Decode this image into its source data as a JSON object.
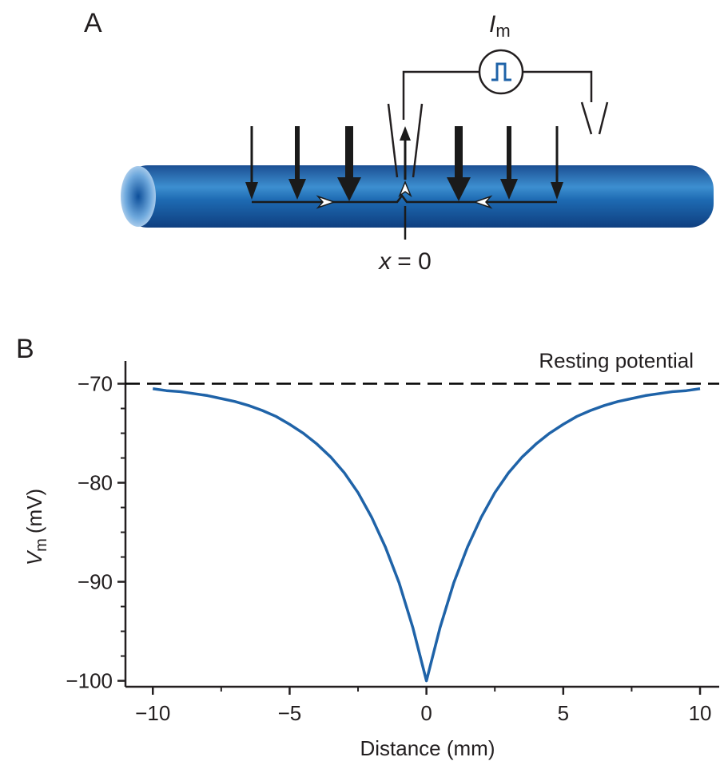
{
  "diagram": {
    "panel_label": "A",
    "current_symbol": "I",
    "current_subscript": "m",
    "position_variable": "x",
    "position_value": "= 0"
  },
  "chart_data": {
    "type": "line",
    "panel_label": "B",
    "xlabel": "Distance (mm)",
    "ylabel": {
      "symbol": "V",
      "subscript": "m",
      "unit": "(mV)"
    },
    "x": [
      -10,
      -9.5,
      -9,
      -8.5,
      -8,
      -7.5,
      -7,
      -6.5,
      -6,
      -5.5,
      -5,
      -4.5,
      -4,
      -3.5,
      -3,
      -2.5,
      -2,
      -1.5,
      -1,
      -0.5,
      0,
      0.5,
      1,
      1.5,
      2,
      2.5,
      3,
      3.5,
      4,
      4.5,
      5,
      5.5,
      6,
      6.5,
      7,
      7.5,
      8,
      8.5,
      9,
      9.5,
      10
    ],
    "series": [
      {
        "color": "#1f63a8",
        "values": [
          -70.5,
          -70.7,
          -70.8,
          -71.0,
          -71.2,
          -71.5,
          -71.8,
          -72.2,
          -72.7,
          -73.3,
          -74.1,
          -75.0,
          -76.1,
          -77.4,
          -79.0,
          -81.0,
          -83.5,
          -86.5,
          -90.1,
          -94.6,
          -100,
          -94.6,
          -90.1,
          -86.5,
          -83.5,
          -81.0,
          -79.0,
          -77.4,
          -76.1,
          -75.0,
          -74.1,
          -73.3,
          -72.7,
          -72.2,
          -71.8,
          -71.5,
          -71.2,
          -71.0,
          -70.8,
          -70.7,
          -70.5
        ]
      }
    ],
    "reference_line": {
      "value": -70,
      "label": "Resting potential",
      "color": "#000000",
      "dashed": true
    },
    "xlim": [
      -11,
      10.7
    ],
    "ylim": [
      -100.6,
      -67.7
    ],
    "xticks": [
      {
        "value": -10,
        "label": "−10"
      },
      {
        "value": -5,
        "label": "−5"
      },
      0,
      5,
      10
    ],
    "yticks": [
      {
        "value": -100,
        "label": "−100"
      },
      {
        "value": -90,
        "label": "−90"
      },
      {
        "value": -80,
        "label": "−80"
      },
      {
        "value": -70,
        "label": "−70"
      }
    ],
    "xminorticks": [
      -7.5,
      -2.5,
      2.5,
      7.5
    ],
    "yminorticks": [
      -97.5,
      -95,
      -92.5,
      -87.5,
      -85,
      -82.5,
      -77.5,
      -75,
      -72.5
    ],
    "grid": false
  }
}
